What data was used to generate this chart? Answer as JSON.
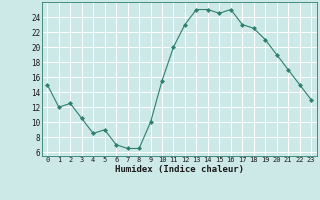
{
  "x": [
    0,
    1,
    2,
    3,
    4,
    5,
    6,
    7,
    8,
    9,
    10,
    11,
    12,
    13,
    14,
    15,
    16,
    17,
    18,
    19,
    20,
    21,
    22,
    23
  ],
  "y": [
    15,
    12,
    12.5,
    10.5,
    8.5,
    9,
    7,
    6.5,
    6.5,
    10,
    15.5,
    20,
    23,
    25,
    25,
    24.5,
    25,
    23,
    22.5,
    21,
    19,
    17,
    15,
    13
  ],
  "line_color": "#2e7f6e",
  "marker": "D",
  "marker_size": 2.0,
  "background_color": "#cce9e7",
  "grid_color": "#b0d8d4",
  "xlabel": "Humidex (Indice chaleur)",
  "xlim": [
    -0.5,
    23.5
  ],
  "ylim": [
    5.5,
    26
  ],
  "yticks": [
    6,
    8,
    10,
    12,
    14,
    16,
    18,
    20,
    22,
    24
  ],
  "xticks": [
    0,
    1,
    2,
    3,
    4,
    5,
    6,
    7,
    8,
    9,
    10,
    11,
    12,
    13,
    14,
    15,
    16,
    17,
    18,
    19,
    20,
    21,
    22,
    23
  ]
}
